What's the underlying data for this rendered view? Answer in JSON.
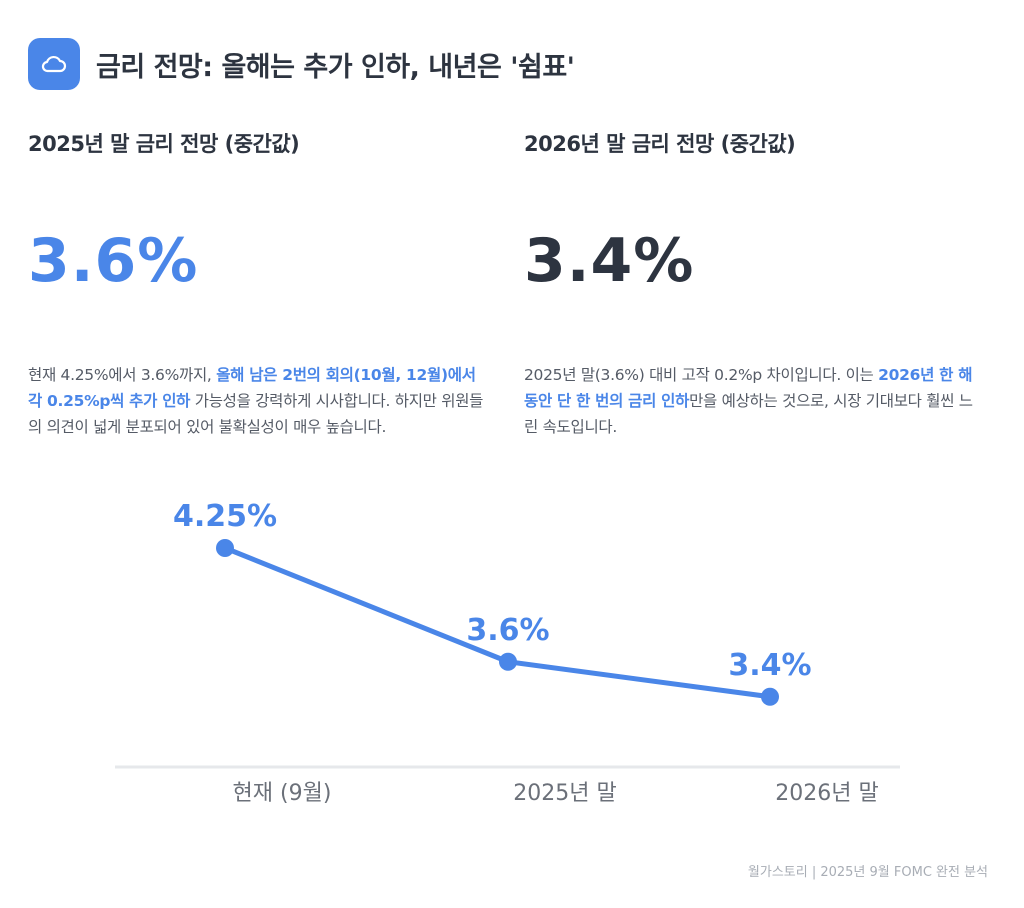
{
  "header": {
    "title": "금리 전망: 올해는 추가 인하, 내년은 '쉼표'",
    "icon": "cloud-icon",
    "accent": "#4a86e8"
  },
  "left": {
    "heading": "2025년 말 금리 전망 (중간값)",
    "value": "3.6%",
    "value_color": "#4a86e8",
    "desc_pre": "현재 4.25%에서 3.6%까지, ",
    "desc_hl": "올해 남은 2번의 회의(10월, 12월)에서 각 0.25%p씩 추가 인하",
    "desc_post": " 가능성을 강력하게 시사합니다. 하지만 위원들의 의견이 넓게 분포되어 있어 불확실성이 매우 높습니다."
  },
  "right": {
    "heading": "2026년 말 금리 전망 (중간값)",
    "value": "3.4%",
    "value_color": "#2d3440",
    "desc_pre": "2025년 말(3.6%) 대비 고작 0.2%p 차이입니다. 이는 ",
    "desc_hl": "2026년 한 해 동안 단 한 번의 금리 인하",
    "desc_post": "만을 예상하는 것으로, 시장 기대보다 훨씬 느린 속도입니다."
  },
  "chart_data": {
    "type": "line",
    "categories": [
      "현재 (9월)",
      "2025년 말",
      "2026년 말"
    ],
    "values": [
      4.25,
      3.6,
      3.4
    ],
    "data_labels": [
      "4.25%",
      "3.6%",
      "3.4%"
    ],
    "title": "",
    "xlabel": "",
    "ylabel": "",
    "grid": false,
    "color": "#4a86e8"
  },
  "footer": {
    "text": "월가스토리 | 2025년 9월 FOMC 완전 분석"
  }
}
